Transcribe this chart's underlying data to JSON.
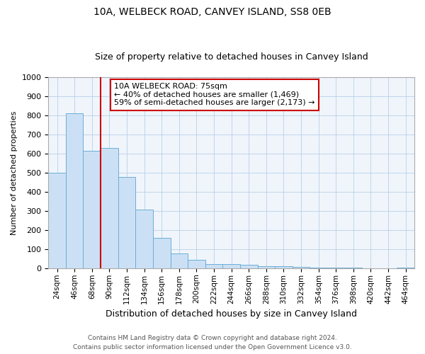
{
  "title": "10A, WELBECK ROAD, CANVEY ISLAND, SS8 0EB",
  "subtitle": "Size of property relative to detached houses in Canvey Island",
  "xlabel": "Distribution of detached houses by size in Canvey Island",
  "ylabel": "Number of detached properties",
  "footer1": "Contains HM Land Registry data © Crown copyright and database right 2024.",
  "footer2": "Contains public sector information licensed under the Open Government Licence v3.0.",
  "categories": [
    "24sqm",
    "46sqm",
    "68sqm",
    "90sqm",
    "112sqm",
    "134sqm",
    "156sqm",
    "178sqm",
    "200sqm",
    "222sqm",
    "244sqm",
    "266sqm",
    "288sqm",
    "310sqm",
    "332sqm",
    "354sqm",
    "376sqm",
    "398sqm",
    "420sqm",
    "442sqm",
    "464sqm"
  ],
  "values": [
    500,
    810,
    615,
    630,
    478,
    307,
    160,
    78,
    43,
    22,
    22,
    17,
    12,
    10,
    7,
    5,
    3,
    2,
    1,
    1,
    2
  ],
  "bar_color": "#cce0f5",
  "bar_edge_color": "#6aaed6",
  "grid_color": "#b8cfe8",
  "vline_x": 2.5,
  "vline_color": "#cc0000",
  "annotation_line1": "10A WELBECK ROAD: 75sqm",
  "annotation_line2": "← 40% of detached houses are smaller (1,469)",
  "annotation_line3": "59% of semi-detached houses are larger (2,173) →",
  "annotation_box_color": "#cc0000",
  "ylim": [
    0,
    1000
  ],
  "yticks": [
    0,
    100,
    200,
    300,
    400,
    500,
    600,
    700,
    800,
    900,
    1000
  ],
  "title_fontsize": 10,
  "subtitle_fontsize": 9,
  "ylabel_fontsize": 8,
  "xlabel_fontsize": 9,
  "tick_fontsize": 8,
  "xtick_fontsize": 7.5,
  "annotation_fontsize": 8,
  "footer_fontsize": 6.5
}
